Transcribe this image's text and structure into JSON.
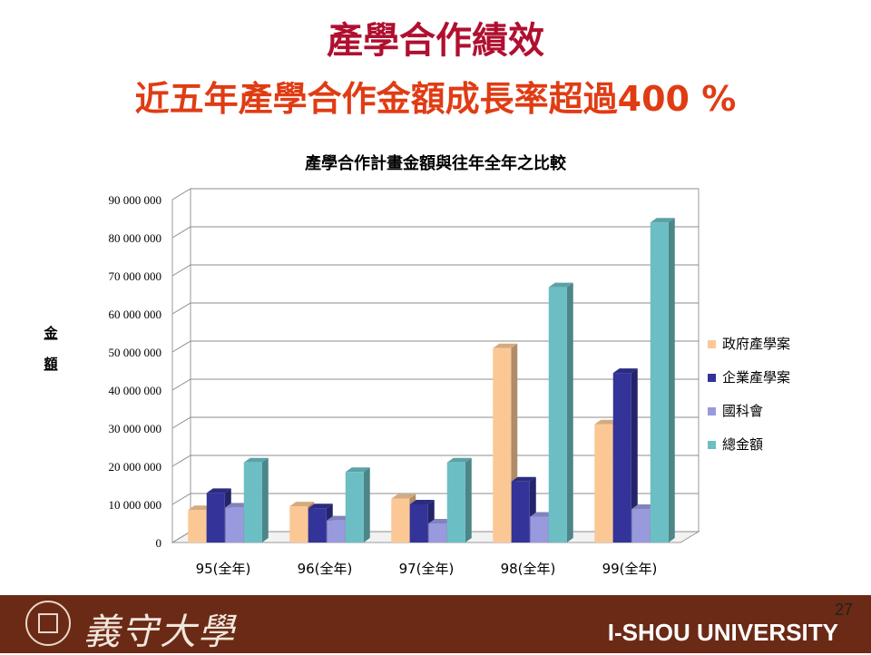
{
  "slide": {
    "title": "產學合作績效",
    "subtitle": "近五年產學合作金額成長率超過400 %"
  },
  "chart_data": {
    "type": "bar",
    "title": "產學合作計畫金額與往年全年之比較",
    "ylabel": "金額",
    "xlabel": "",
    "categories": [
      "95(全年)",
      "96(全年)",
      "97(全年)",
      "98(全年)",
      "99(全年)"
    ],
    "yticks": [
      "0",
      "10 000 000",
      "20 000 000",
      "30 000 000",
      "40 000 000",
      "50 000 000",
      "60 000 000",
      "70 000 000",
      "80 000 000",
      "90 000 000"
    ],
    "ylim": [
      0,
      90000000
    ],
    "grid": true,
    "legend_position": "right",
    "series": [
      {
        "name": "政府產學案",
        "color": "#fbc895",
        "values": [
          8500000,
          9500000,
          11500000,
          51000000,
          31000000
        ]
      },
      {
        "name": "企業產學案",
        "color": "#333399",
        "values": [
          13000000,
          9000000,
          10000000,
          16000000,
          44500000
        ]
      },
      {
        "name": "國科會",
        "color": "#9999dd",
        "values": [
          9200000,
          5800000,
          5000000,
          6800000,
          8800000
        ]
      },
      {
        "name": "總金額",
        "color": "#6bbfc4",
        "values": [
          21000000,
          18500000,
          21000000,
          67000000,
          84000000
        ]
      }
    ]
  },
  "footer": {
    "logo_text": "義守大學",
    "university": "I-SHOU UNIVERSITY",
    "page_number": "27"
  }
}
